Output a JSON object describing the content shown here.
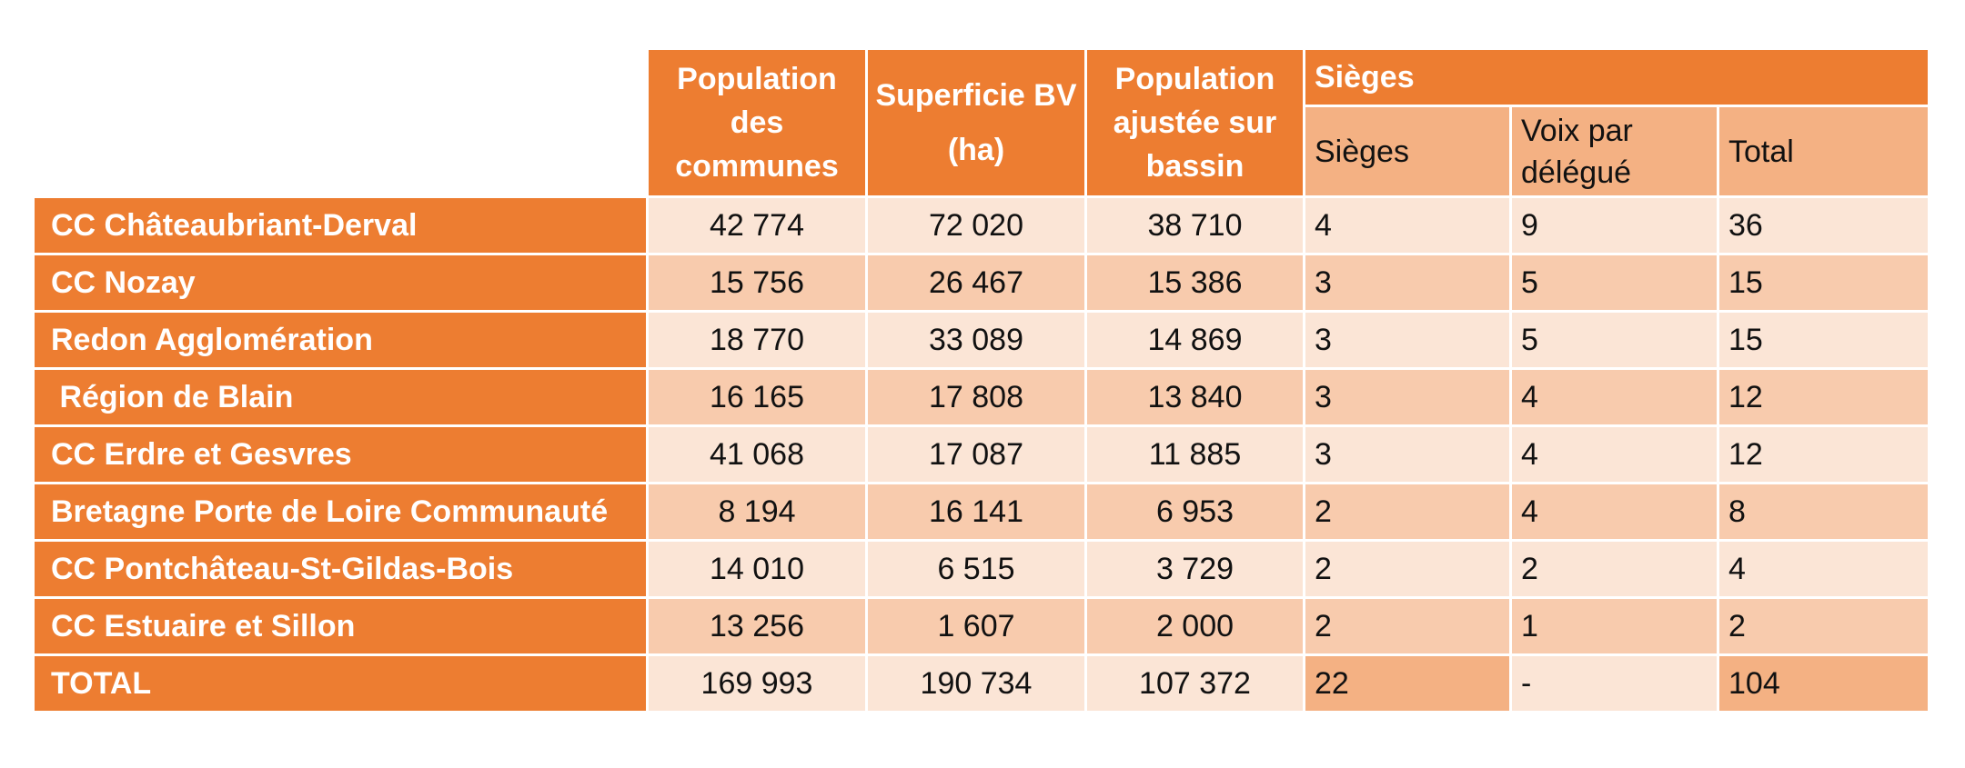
{
  "colors": {
    "header_orange": "#ED7D31",
    "subheader_peach": "#F4B183",
    "row_light": "#FBE5D6",
    "row_dark": "#F8CBAD"
  },
  "headers": {
    "population_communes": "Population des communes",
    "superficie_bv_line1": "Superficie BV",
    "superficie_bv_line2": "(ha)",
    "population_ajustee": "Population ajustée sur bassin",
    "sieges_group": "Sièges",
    "sub_sieges": "Sièges",
    "sub_voix": "Voix par délégué",
    "sub_total": "Total"
  },
  "rows": [
    {
      "name": "CC Châteaubriant-Derval",
      "population": "42 774",
      "superficie": "72 020",
      "pop_ajustee": "38 710",
      "sieges": "4",
      "voix": "9",
      "total": "36"
    },
    {
      "name": "CC Nozay",
      "population": "15 756",
      "superficie": "26 467",
      "pop_ajustee": "15 386",
      "sieges": "3",
      "voix": "5",
      "total": "15"
    },
    {
      "name": "Redon Agglomération",
      "population": "18 770",
      "superficie": "33 089",
      "pop_ajustee": "14 869",
      "sieges": "3",
      "voix": "5",
      "total": "15"
    },
    {
      "name": " Région de Blain",
      "population": "16 165",
      "superficie": "17 808",
      "pop_ajustee": "13 840",
      "sieges": "3",
      "voix": "4",
      "total": "12"
    },
    {
      "name": "CC Erdre et Gesvres",
      "population": "41 068",
      "superficie": "17 087",
      "pop_ajustee": "11 885",
      "sieges": "3",
      "voix": "4",
      "total": "12"
    },
    {
      "name": "Bretagne Porte de Loire Communauté",
      "population": "8 194",
      "superficie": "16 141",
      "pop_ajustee": "6 953",
      "sieges": "2",
      "voix": "4",
      "total": "8"
    },
    {
      "name": "CC Pontchâteau-St-Gildas-Bois",
      "population": "14 010",
      "superficie": "6 515",
      "pop_ajustee": "3 729",
      "sieges": "2",
      "voix": "2",
      "total": "4"
    },
    {
      "name": "CC Estuaire et Sillon",
      "population": "13 256",
      "superficie": "1 607",
      "pop_ajustee": "2 000",
      "sieges": "2",
      "voix": "1",
      "total": "2"
    }
  ],
  "total_row": {
    "name": "TOTAL",
    "population": "169 993",
    "superficie": "190 734",
    "pop_ajustee": "107 372",
    "sieges": "22",
    "voix": "-",
    "total": "104"
  }
}
